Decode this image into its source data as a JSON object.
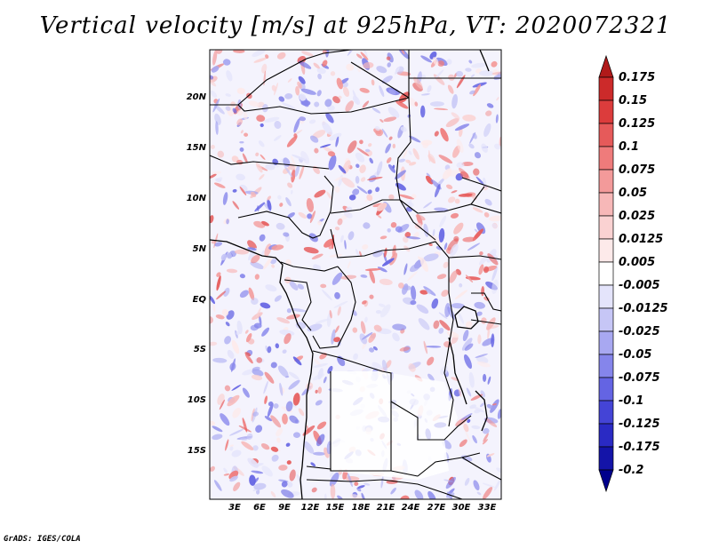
{
  "title": "Vertical velocity [m/s] at 925hPa, VT: 2020072321",
  "credit": "GrADS: IGES/COLA",
  "lat_labels": [
    "20N",
    "15N",
    "10N",
    "5N",
    "EQ",
    "5S",
    "10S",
    "15S"
  ],
  "lon_labels": [
    "3E",
    "6E",
    "9E",
    "12E",
    "15E",
    "18E",
    "21E",
    "24E",
    "27E",
    "30E",
    "33E"
  ],
  "colorbar": {
    "levels": [
      "0.175",
      "0.15",
      "0.125",
      "0.1",
      "0.075",
      "0.05",
      "0.025",
      "0.0125",
      "0.005",
      "-0.005",
      "-0.0125",
      "-0.025",
      "-0.05",
      "-0.075",
      "-0.1",
      "-0.125",
      "-0.175",
      "-0.2"
    ],
    "colors": [
      "#b01a1a",
      "#cc2a2a",
      "#dc3c3c",
      "#e65a5a",
      "#ef7b7b",
      "#f39a9a",
      "#f7b8b8",
      "#fad2d2",
      "#fdeaea",
      "#ffffff",
      "#e4e4fb",
      "#c6c6f6",
      "#a8a8f1",
      "#8585eb",
      "#6464e3",
      "#4444d6",
      "#2a2ac4",
      "#1414a8",
      "#00008c"
    ]
  }
}
